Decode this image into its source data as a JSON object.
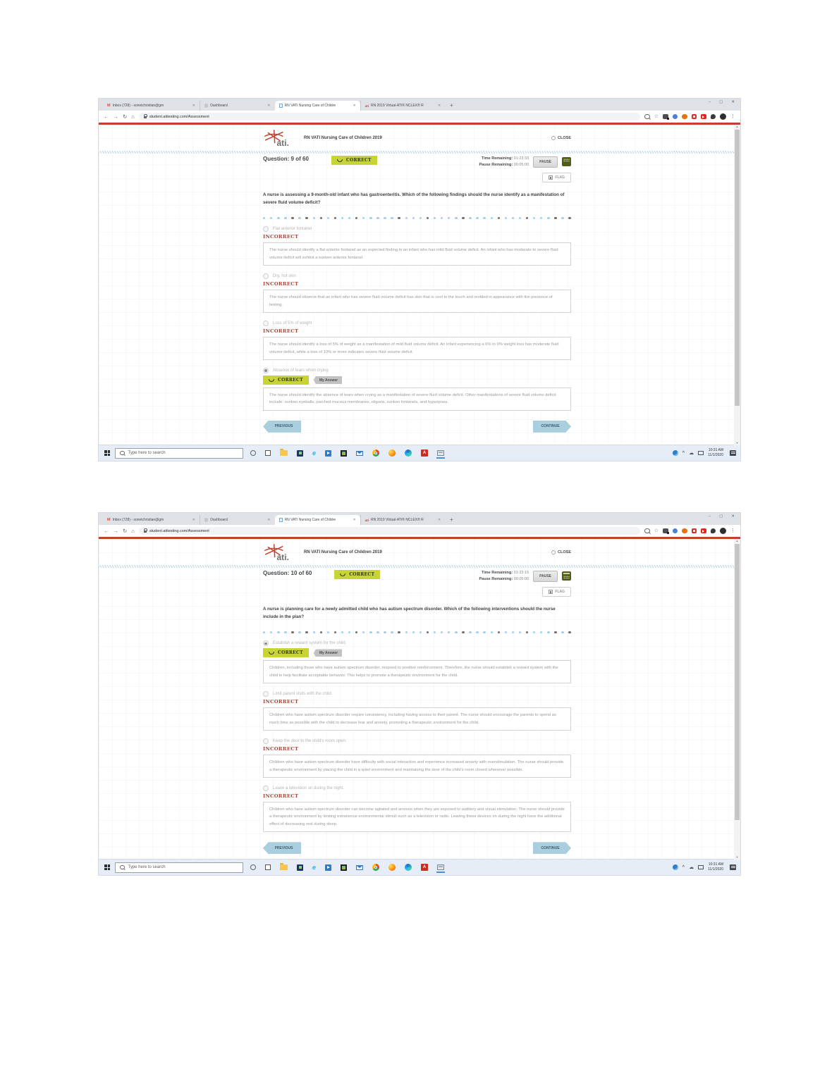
{
  "browser": {
    "window_controls": {
      "minimize": "–",
      "maximize": "▢",
      "close": "✕"
    },
    "tabs": [
      {
        "title": "Inbox (728) - sonetchristian@gm"
      },
      {
        "title": "Dashboard"
      },
      {
        "title": "RN VATI Nursing Care of Childre"
      },
      {
        "title": "RN 2019 Virtual-ATI® NCLEX® R"
      }
    ],
    "new_tab": "+",
    "url": "student.atitesting.com/Assessment"
  },
  "icons": {
    "gmail": "M",
    "ati_favicon": "ati",
    "tab_close": "✕",
    "back": "←",
    "forward": "→",
    "reload": "↻",
    "home": "⌂",
    "star": "☆",
    "menu": "⋮",
    "scroll_up": "▲",
    "scroll_down": "▼",
    "ie_letter": "e",
    "acrobat_letter": "A",
    "tray_caret": "^",
    "cloud": "☁"
  },
  "taskbar": {
    "search_placeholder": "Type here to search",
    "time": "10:31 AM",
    "date": "11/1/2020"
  },
  "dots": [
    "b",
    "b",
    "b",
    "b",
    "d",
    "b",
    "d",
    "b",
    "d",
    "b",
    "d",
    "b",
    "b",
    "d",
    "b",
    "b",
    "b",
    "b",
    "b",
    "d",
    "b",
    "b",
    "b",
    "d",
    "b",
    "b",
    "b",
    "b",
    "d",
    "b",
    "b",
    "b",
    "b",
    "d",
    "b",
    "b",
    "b",
    "d",
    "b",
    "b",
    "b",
    "d",
    "b",
    "d"
  ],
  "windows": [
    {
      "title": "RN VATI Nursing Care of Children 2019",
      "close_label": "CLOSE",
      "question_label": "Question: 9 of 60",
      "correct_label": "CORRECT",
      "time_remaining_label": "Time Remaining:",
      "time_remaining": "01:23:33",
      "pause_remaining_label": "Pause Remaining:",
      "pause_remaining": "00:05:00",
      "pause_label": "PAUSE",
      "flag_label": "FLAG",
      "stem": "A nurse is assessing a 9-month-old infant who has gastroenteritis. Which of the following findings should the nurse identify as a manifestation of severe fluid volume deficit?",
      "options": [
        {
          "label": "Flat anterior fontanel",
          "status": "INCORRECT",
          "rationale": "The nurse should identify a flat anterior fontanel as an expected finding in an infant who has mild fluid volume deficit. An infant who has moderate to severe fluid volume deficit will exhibit a sunken anterior fontanel."
        },
        {
          "label": "Dry, hot skin",
          "status": "INCORRECT",
          "rationale": "The nurse should observe that an infant who has severe fluid volume deficit has skin that is cool to the touch and mottled in appearance with the presence of tenting."
        },
        {
          "label": "Loss of 5% of weight",
          "status": "INCORRECT",
          "rationale": "The nurse should identify a loss of 5% of weight as a manifestation of mild fluid volume deficit. An infant experiencing a 6% to 9% weight loss has moderate fluid volume deficit, while a loss of 10% or more indicates severe fluid volume deficit."
        },
        {
          "label": "Absence of tears when crying",
          "status": "CORRECT",
          "my_answer_label": "My Answer",
          "rationale": "The nurse should identify the absence of tears when crying as a manifestation of severe fluid volume deficit. Other manifestations of severe fluid volume deficit include: sunken eyeballs, parched mucous membranes, oliguria, sunken fontanels, and hyperpnea."
        }
      ],
      "previous_label": "PREVIOUS",
      "continue_label": "CONTINUE"
    },
    {
      "title": "RN VATI Nursing Care of Children 2019",
      "close_label": "CLOSE",
      "question_label": "Question: 10 of 60",
      "correct_label": "CORRECT",
      "time_remaining_label": "Time Remaining:",
      "time_remaining": "01:23:15",
      "pause_remaining_label": "Pause Remaining:",
      "pause_remaining": "00:05:00",
      "pause_label": "PAUSE",
      "flag_label": "FLAG",
      "stem": "A nurse is planning care for a newly admitted child who has autism spectrum disorder. Which of the following interventions should the nurse include in the plan?",
      "options": [
        {
          "label": "Establish a reward system for the child.",
          "status": "CORRECT",
          "my_answer_label": "My Answer",
          "rationale": "Children, including those who have autism spectrum disorder, respond to positive reinforcement. Therefore, the nurse should establish a reward system with the child to help facilitate acceptable behavior. This helps to promote a therapeutic environment for the child."
        },
        {
          "label": "Limit parent visits with the child.",
          "status": "INCORRECT",
          "rationale": "Children who have autism spectrum disorder require consistency, including having access to their parent. The nurse should encourage the parents to spend as much time as possible with the child to decrease fear and anxiety, promoting a therapeutic environment for the child."
        },
        {
          "label": "Keep the door to the child's room open.",
          "status": "INCORRECT",
          "rationale": "Children who have autism spectrum disorder have difficulty with social interaction and experience increased anxiety with overstimulation. The nurse should provide a therapeutic environment by placing the child in a quiet environment and maintaining the door of the child's room closed whenever possible."
        },
        {
          "label": "Leave a television on during the night.",
          "status": "INCORRECT",
          "rationale": "Children who have autism spectrum disorder can become agitated and anxious when they are exposed to auditory and visual stimulation. The nurse should provide a therapeutic environment by limiting extraneous environmental stimuli such as a television or radio. Leaving these devices on during the night have the additional effect of decreasing rest during sleep."
        }
      ],
      "previous_label": "PREVIOUS",
      "continue_label": "CONTINUE"
    }
  ]
}
